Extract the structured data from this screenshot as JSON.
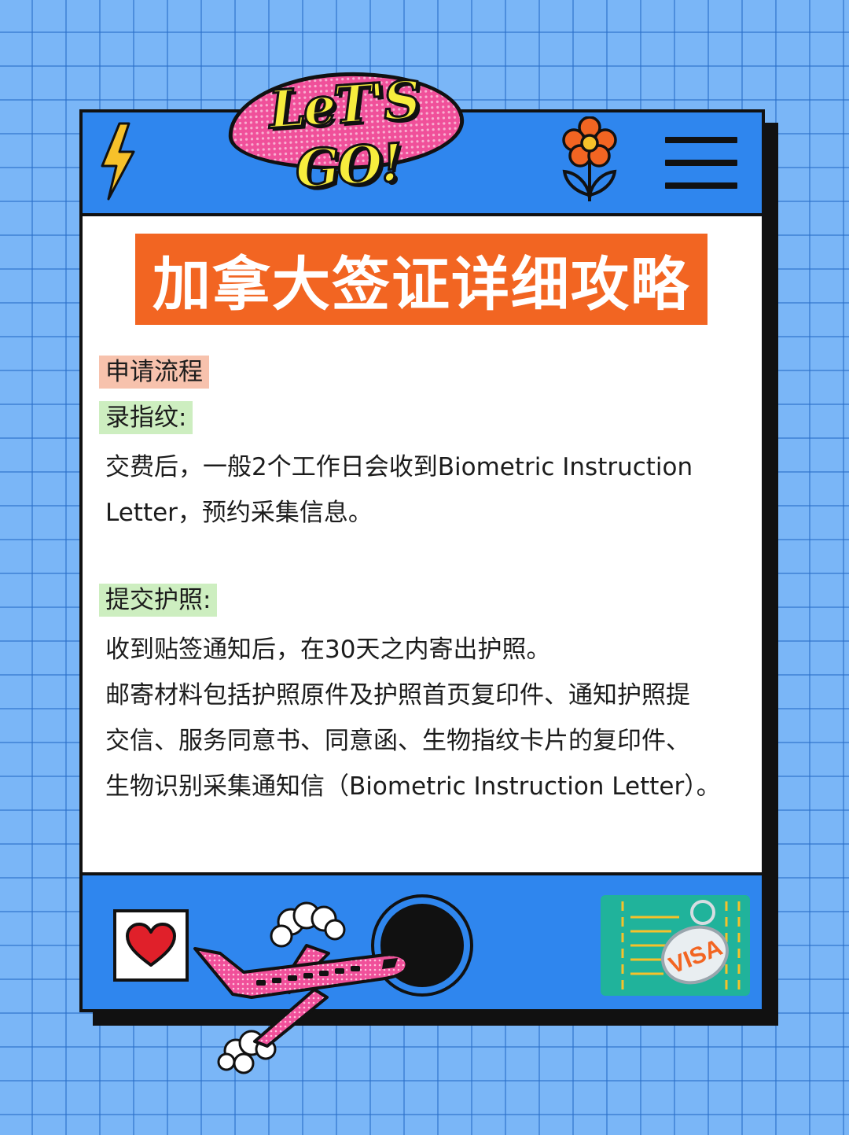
{
  "header": {
    "logo_text": "LeT'S GO!",
    "icons": [
      "lightning-bolt-icon",
      "flower-icon",
      "menu-icon"
    ]
  },
  "title": "加拿大签证详细攻略",
  "sections": {
    "process_label": "申请流程",
    "fingerprint_label": "录指纹:",
    "fingerprint_lines": [
      "交费后，一般2个工作日会收到Biometric Instruction",
      "Letter，预约采集信息。"
    ],
    "passport_label": "提交护照:",
    "passport_lines": [
      "收到贴签通知后，在30天之内寄出护照。",
      "邮寄材料包括护照原件及护照首页复印件、通知护照提",
      "交信、服务同意书、同意函、生物指纹卡片的复印件、",
      "生物识别采集通知信（Biometric Instruction Letter）。"
    ]
  },
  "footer": {
    "visa_tag_text": "VISA",
    "icons": [
      "heart-icon",
      "airplane-icon",
      "porthole-icon",
      "visa-card-icon"
    ]
  },
  "colors": {
    "background": "#7ab6f7",
    "bar_blue": "#2f86ee",
    "title_orange": "#f26522",
    "tag_red": "#f7c2ad",
    "tag_green": "#cdeec0",
    "pink": "#f0509a"
  }
}
